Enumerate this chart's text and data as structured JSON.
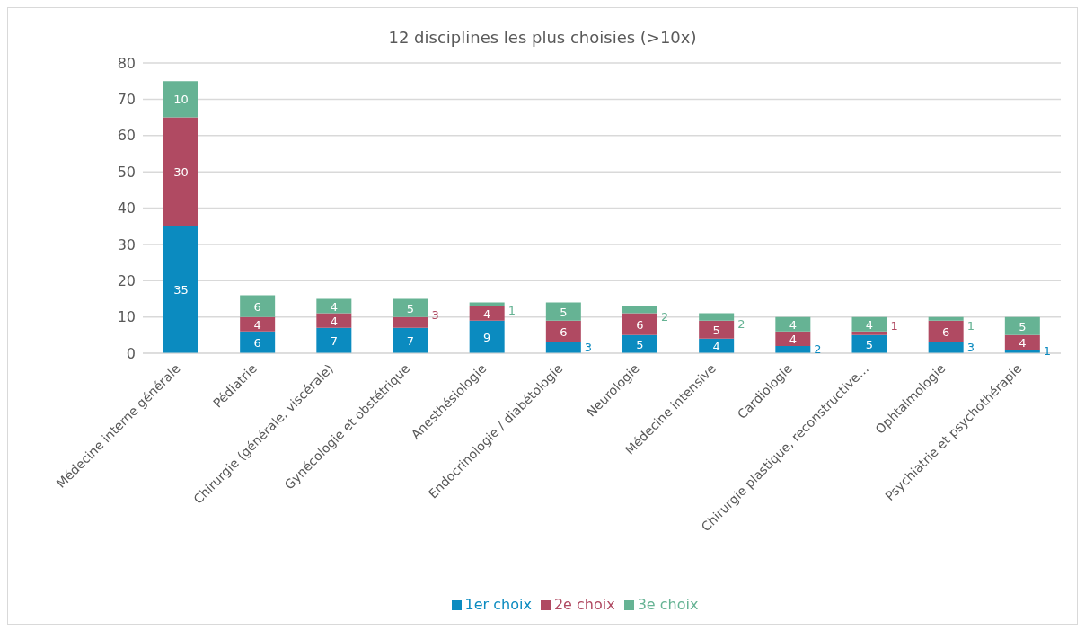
{
  "chart_data": {
    "type": "bar",
    "title": "12 disciplines les plus choisies (>10x)",
    "stacked": true,
    "data_labels": true,
    "grid": "y",
    "legend": "bottom",
    "categories": [
      "Médecine interne générale",
      "Pédiatrie",
      "Chirurgie (générale, viscérale)",
      "Gynécologie et obstétrique",
      "Anesthésiologie",
      "Endocrinologie / diabétologie",
      "Neurologie",
      "Médecine intensive",
      "Cardiologie",
      "Chirurgie plastique, reconstructive…",
      "Ophtalmologie",
      "Psychiatrie et psychothérapie"
    ],
    "series": [
      {
        "name": "1er choix",
        "color": "#0b8bc0",
        "values": [
          35,
          6,
          7,
          7,
          9,
          3,
          5,
          4,
          2,
          5,
          3,
          1
        ]
      },
      {
        "name": "2e choix",
        "color": "#b04a62",
        "values": [
          30,
          4,
          4,
          3,
          4,
          6,
          6,
          5,
          4,
          1,
          6,
          4
        ]
      },
      {
        "name": "3e choix",
        "color": "#66b394",
        "values": [
          10,
          6,
          4,
          5,
          1,
          5,
          2,
          2,
          4,
          4,
          1,
          5
        ]
      }
    ],
    "ylim": [
      0,
      80
    ],
    "yticks": [
      0,
      10,
      20,
      30,
      40,
      50,
      60,
      70,
      80
    ]
  }
}
